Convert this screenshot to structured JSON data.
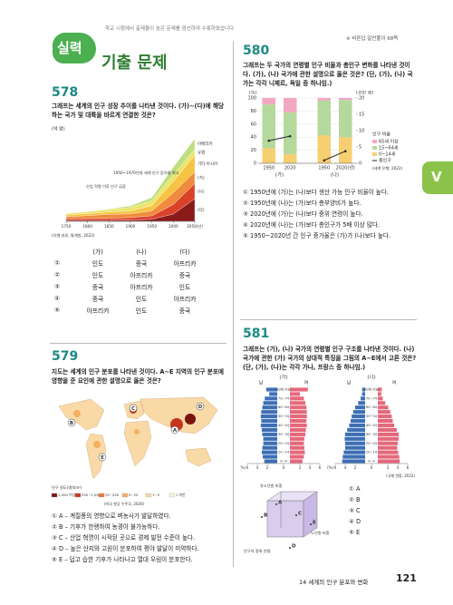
{
  "header": {
    "badge": "실력",
    "title": "기출 문제",
    "subtitle": "학교 시험에서 출제율이 높은 문제를 엄선하여 수록하였습니다.",
    "answer_ref": "※ 바른답·알찬풀이 68쪽"
  },
  "side_tab": "V",
  "footer": {
    "chapter": "14 세계의 인구 분포와 변화",
    "page": "121"
  },
  "q578": {
    "number": "578",
    "question": "그래프는 세계의 인구 성장 추이를 나타낸 것이다. (가)~(다)에 해당하는 국가 및 대륙을 바르게 연결한 것은?",
    "chart": {
      "type": "area",
      "y_label": "(억 명)",
      "x": [
        1750,
        1800,
        1850,
        1900,
        1950,
        2000,
        2050
      ],
      "xlim": [
        1750,
        2050
      ],
      "xticks": [
        1750,
        1800,
        1850,
        1900,
        1950,
        2000,
        {
          "value": 2050,
          "label": "2050(년)"
        }
      ],
      "ylim": [
        0,
        100
      ],
      "series": [
        {
          "name": "(다)",
          "color": "#8b1a1a",
          "values": [
            1.0,
            1.1,
            1.1,
            1.4,
            2.3,
            8.1,
            24.9
          ]
        },
        {
          "name": "(나)",
          "color": "#d9412b",
          "values": [
            1.9,
            2.0,
            2.3,
            2.8,
            3.8,
            10.6,
            16.7
          ]
        },
        {
          "name": "(가)",
          "color": "#f08a3c",
          "values": [
            2.2,
            3.2,
            4.3,
            4.0,
            5.5,
            12.9,
            13.1
          ]
        },
        {
          "name": "기타 아시아",
          "color": "#f6c343",
          "values": [
            2.0,
            2.2,
            2.6,
            3.2,
            5.7,
            12.5,
            18.0
          ]
        },
        {
          "name": "유럽",
          "color": "#ece56c",
          "values": [
            1.6,
            2.0,
            2.7,
            4.1,
            5.5,
            7.3,
            7.0
          ]
        },
        {
          "name": "아메리카",
          "color": "#bddf82",
          "values": [
            0.2,
            0.3,
            0.6,
            1.6,
            3.4,
            8.4,
            11.5
          ]
        }
      ],
      "annotations": [
        "산업 혁명 이후 인구 급증",
        "1950~1970년대 세계 인구 증가율 최고"
      ],
      "source": "(유엔 자료, 통계청, 2022)"
    },
    "table": {
      "header": [
        "(가)",
        "(나)",
        "(다)"
      ],
      "rows": [
        [
          "①",
          "인도",
          "중국",
          "아프리카"
        ],
        [
          "②",
          "인도",
          "아프리카",
          "중국"
        ],
        [
          "③",
          "중국",
          "아프리카",
          "인도"
        ],
        [
          "④",
          "중국",
          "인도",
          "아프리카"
        ],
        [
          "⑤",
          "아프리카",
          "인도",
          "중국"
        ]
      ]
    }
  },
  "q579": {
    "number": "579",
    "question": "지도는 세계의 인구 분포를 나타낸 것이다. A~E 지역의 인구 분포에 영향을 준 요인에 관한 설명으로 옳은 것은?",
    "map": {
      "labels": [
        "A",
        "B",
        "C",
        "D",
        "E"
      ],
      "legend_title": "인구 밀도(명/km²)",
      "legend": [
        {
          "label": "1,000 이상",
          "color": "#7a1410"
        },
        {
          "label": "250~1,000",
          "color": "#c6361f"
        },
        {
          "label": "25~250",
          "color": "#ee7a36"
        },
        {
          "label": "5~25",
          "color": "#f6b063"
        },
        {
          "label": "1~5",
          "color": "#f9d9a6"
        },
        {
          "label": "1 미만",
          "color": "#fdf1dc"
        }
      ],
      "source": "(미국 항공 우주국, 2020)"
    },
    "choices": [
      "① A – 계절풍의 영향으로 벼농사가 발달하였다.",
      "② B – 기후가 한랭하여 농경이 불가능하다.",
      "③ C – 산업 혁명이 시작된 곳으로 경제 발전 수준이 높다.",
      "④ D – 높은 산지와 고원이 분포하여 평야 발달이 미약하다.",
      "⑤ E – 덥고 습한 기후가 나타나고 열대 우림이 분포한다."
    ]
  },
  "q580": {
    "number": "580",
    "question": "그래프는 두 국가의 연령별 인구 비율과 총인구 변화를 나타낸 것이다. (가), (나) 국가에 관한 설명으로 옳은 것은? (단, (가), (나) 국가는 각각 니제르, 독일 중 하나임.)",
    "chart": {
      "type": "stacked_bar",
      "categories": [
        "1950",
        "2020",
        "1950",
        "2020(년)"
      ],
      "groups": [
        "(가)",
        "(나)"
      ],
      "y_label": "(%)",
      "y2_label": "(천만 명)",
      "ylim": [
        0,
        100
      ],
      "yticks": [
        0,
        20,
        40,
        60,
        80,
        100
      ],
      "y2lim": [
        0,
        20
      ],
      "y2ticks": [
        0,
        5,
        10,
        15,
        20
      ],
      "grid": true,
      "legend_title": "인구 비율",
      "series": [
        {
          "name": "0~14세",
          "color": "#f6cf72",
          "values": [
            23,
            14,
            43,
            40
          ]
        },
        {
          "name": "15~64세",
          "color": "#b5d99c",
          "values": [
            67,
            64,
            53,
            57
          ]
        },
        {
          "name": "65세 이상",
          "color": "#f2a7c3",
          "values": [
            10,
            22,
            4,
            3
          ]
        }
      ],
      "line": {
        "name": "총인구",
        "axis": "y2",
        "color": "#2b2b2b",
        "values": [
          6.9,
          8.3,
          0.9,
          3.7
        ]
      },
      "source": "(세계 은행, 2022)"
    },
    "choices": [
      "① 1950년에 (가)는 (나)보다 생산 가능 인구 비율이 높다.",
      "② 1950년에 (나)는 (가)보다 총부양비가 높다.",
      "③ 2020년에 (가)는 (나)보다 중위 연령이 높다.",
      "④ 2020년에 (나)는 (가)보다 총인구가 5배 이상 많다.",
      "⑤ 1950~2020년 간 인구 증가율은 (가)가 (나)보다 높다."
    ]
  },
  "q581": {
    "number": "581",
    "question": "그래프는 (가), (나) 국가의 연령별 인구 구조를 나타낸 것이다. (나) 국가에 관한 (가) 국가의 상대적 특징을 그림의 A~E에서 고른 것은? (단, (가), (나)는 각각 가나, 프랑스 중 하나임.)",
    "chart": {
      "type": "pyramid",
      "categories": [
        "0~4",
        null,
        "10~14",
        null,
        "20~24",
        null,
        "30~34",
        null,
        "40~44",
        null,
        "50~54",
        null,
        "60~64",
        null,
        "70~74",
        null,
        "80세 이상"
      ],
      "xlim": [
        -6,
        6
      ],
      "xticks": [
        {
          "value": -6,
          "label": "6"
        },
        {
          "value": -4,
          "label": "4"
        },
        {
          "value": -2,
          "label": "2"
        },
        0,
        2,
        4,
        6
      ],
      "x_unit": "(%)",
      "panels": [
        {
          "name": "(가)",
          "series": [
            {
              "name": "남",
              "color": "#3e6fb5",
              "values": [
                2.6,
                2.9,
                3.1,
                3.0,
                2.8,
                2.8,
                3.0,
                3.1,
                3.3,
                3.2,
                3.3,
                3.2,
                3.0,
                2.8,
                2.5,
                1.6,
                2.2
              ]
            },
            {
              "name": "여",
              "color": "#e4687b",
              "values": [
                2.5,
                2.8,
                3.0,
                2.9,
                2.8,
                2.9,
                3.1,
                3.2,
                3.4,
                3.3,
                3.4,
                3.4,
                3.3,
                3.1,
                2.8,
                2.0,
                3.6
              ]
            }
          ]
        },
        {
          "name": "(나)",
          "series": [
            {
              "name": "남",
              "color": "#3e6fb5",
              "values": [
                4.6,
                4.5,
                4.3,
                4.0,
                4.0,
                4.1,
                4.0,
                3.6,
                3.2,
                2.9,
                2.7,
                2.4,
                2.0,
                1.4,
                0.9,
                0.6,
                0.6
              ]
            },
            {
              "name": "여",
              "color": "#e4687b",
              "values": [
                4.4,
                4.3,
                4.1,
                3.9,
                4.0,
                4.2,
                4.2,
                3.8,
                3.3,
                3.0,
                2.8,
                2.5,
                2.1,
                1.5,
                1.0,
                0.7,
                0.8
              ]
            }
          ]
        }
      ],
      "source": "(국제 연합, 2022)"
    },
    "diagram": {
      "axes": [
        "유소년층 비중",
        "노년층 비중",
        "인구의 중위 연령"
      ],
      "points": [
        "A",
        "B",
        "C",
        "D",
        "E"
      ]
    },
    "choices": [
      "① A",
      "② B",
      "③ C",
      "④ D",
      "⑤ E"
    ]
  }
}
